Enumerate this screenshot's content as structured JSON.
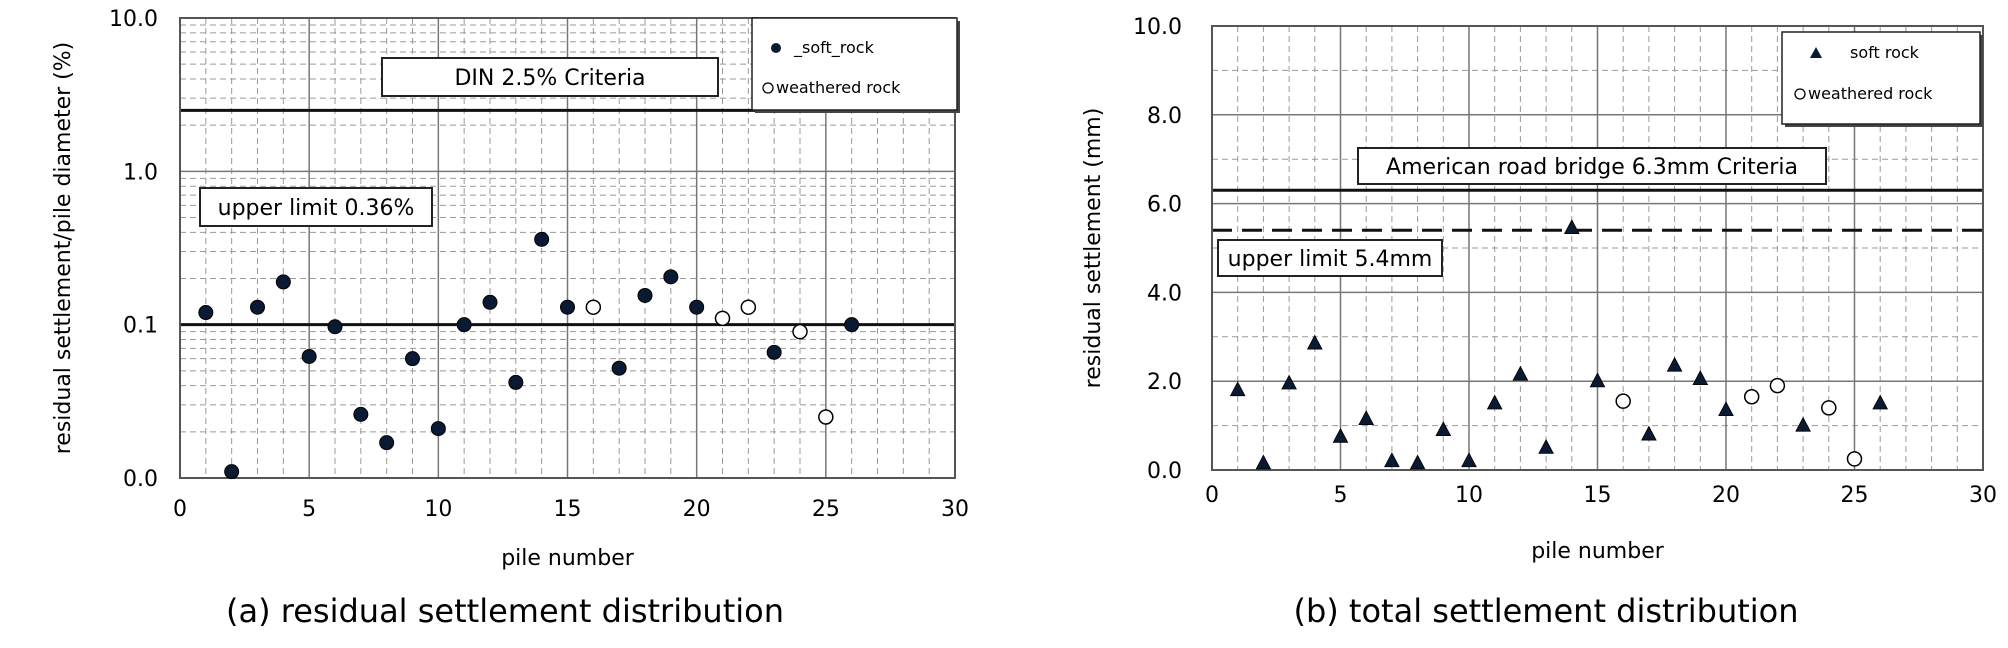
{
  "chart_data": [
    {
      "type": "scatter",
      "caption": "(a) residual settlement distribution",
      "xlabel": "pile number",
      "ylabel": "residual settlement/pile diameter (%)",
      "xlim": [
        0,
        30
      ],
      "x_ticks": [
        "0",
        "5",
        "10",
        "15",
        "20",
        "25",
        "30"
      ],
      "y_scale": "log",
      "y_ticks": [
        "0.0",
        "0.1",
        "1.0",
        "10.0"
      ],
      "grid": true,
      "legend_position": "top-right",
      "series": [
        {
          "name": "soft rock",
          "legend_label": "_soft_rock",
          "marker": "filled-circle",
          "color": "#0b1a33",
          "points": [
            [
              1,
              0.12
            ],
            [
              2,
              0.011
            ],
            [
              3,
              0.13
            ],
            [
              4,
              0.19
            ],
            [
              5,
              0.062
            ],
            [
              6,
              0.097
            ],
            [
              7,
              0.026
            ],
            [
              8,
              0.017
            ],
            [
              9,
              0.06
            ],
            [
              10,
              0.021
            ],
            [
              11,
              0.1
            ],
            [
              12,
              0.14
            ],
            [
              13,
              0.042
            ],
            [
              14,
              0.36
            ],
            [
              15,
              0.13
            ],
            [
              17,
              0.052
            ],
            [
              18,
              0.155
            ],
            [
              19,
              0.205
            ],
            [
              20,
              0.13
            ],
            [
              23,
              0.066
            ],
            [
              26,
              0.1
            ]
          ]
        },
        {
          "name": "weathered rock",
          "legend_label": "weathered rock",
          "marker": "open-circle",
          "color": "#000000",
          "points": [
            [
              16,
              0.13
            ],
            [
              21,
              0.11
            ],
            [
              22,
              0.13
            ],
            [
              24,
              0.09
            ],
            [
              25,
              0.025
            ]
          ]
        }
      ],
      "reference_lines": [
        {
          "y": 2.5,
          "style": "solid",
          "label": "DIN 2.5%  Criteria"
        },
        {
          "y": 0.1,
          "style": "solid",
          "label": ""
        }
      ],
      "annotations": [
        "upper limit  0.36%"
      ]
    },
    {
      "type": "scatter",
      "caption": "(b) total settlement distribution",
      "xlabel": "pile number",
      "ylabel": "residual settlement (mm)",
      "xlim": [
        0,
        30
      ],
      "ylim": [
        0,
        10
      ],
      "x_ticks": [
        "0",
        "5",
        "10",
        "15",
        "20",
        "25",
        "30"
      ],
      "y_ticks": [
        "0.0",
        "2.0",
        "4.0",
        "6.0",
        "8.0",
        "10.0"
      ],
      "grid": true,
      "legend_position": "top-right",
      "series": [
        {
          "name": "soft rock",
          "legend_label": "soft rock",
          "marker": "filled-triangle",
          "color": "#0b1a33",
          "points": [
            [
              1,
              1.8
            ],
            [
              2,
              0.15
            ],
            [
              3,
              1.95
            ],
            [
              4,
              2.85
            ],
            [
              5,
              0.75
            ],
            [
              6,
              1.15
            ],
            [
              7,
              0.2
            ],
            [
              8,
              0.15
            ],
            [
              9,
              0.9
            ],
            [
              10,
              0.2
            ],
            [
              11,
              1.5
            ],
            [
              12,
              2.15
            ],
            [
              13,
              0.5
            ],
            [
              14,
              5.45
            ],
            [
              15,
              2.0
            ],
            [
              17,
              0.8
            ],
            [
              18,
              2.35
            ],
            [
              19,
              2.05
            ],
            [
              20,
              1.35
            ],
            [
              23,
              1.0
            ],
            [
              26,
              1.5
            ]
          ]
        },
        {
          "name": "weathered rock",
          "legend_label": "weathered rock",
          "marker": "open-circle",
          "color": "#000000",
          "points": [
            [
              16,
              1.55
            ],
            [
              21,
              1.65
            ],
            [
              22,
              1.9
            ],
            [
              24,
              1.4
            ],
            [
              25,
              0.25
            ]
          ]
        }
      ],
      "reference_lines": [
        {
          "y": 6.3,
          "style": "solid",
          "label": "American road bridge  6.3mm   Criteria"
        },
        {
          "y": 5.4,
          "style": "dashed",
          "label": "upper limit  5.4mm"
        }
      ],
      "annotations": []
    }
  ]
}
